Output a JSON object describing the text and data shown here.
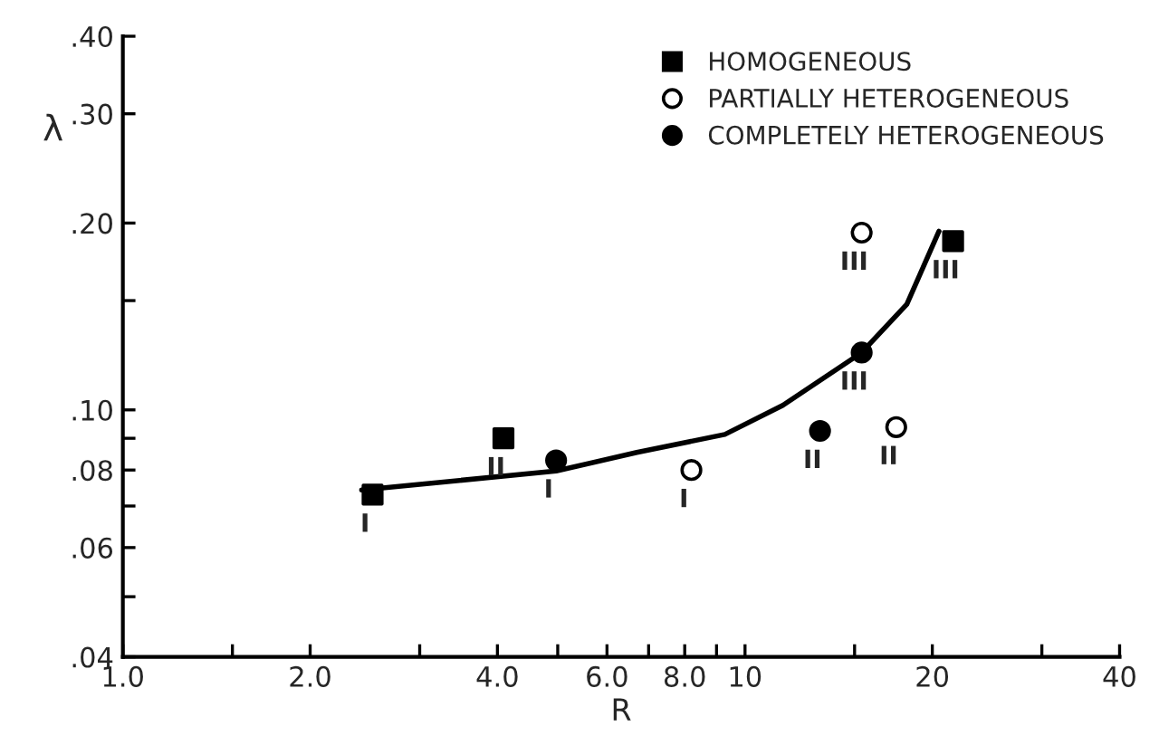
{
  "chart_data": {
    "type": "scatter",
    "xlabel": "R",
    "ylabel": "λ",
    "log": "xy",
    "grid": false,
    "legend": "top right",
    "xlim": [
      1.0,
      40
    ],
    "ylim": [
      0.04,
      0.4
    ],
    "xticks": [
      {
        "value": 1.0,
        "label": "1.0"
      },
      {
        "value": 1.5,
        "label": null
      },
      {
        "value": 2.0,
        "label": "2.0"
      },
      {
        "value": 3,
        "label": null
      },
      {
        "value": 4.0,
        "label": "4.0"
      },
      {
        "value": 5,
        "label": null
      },
      {
        "value": 6.0,
        "label": "6.0"
      },
      {
        "value": 7,
        "label": null
      },
      {
        "value": 8.0,
        "label": "8.0"
      },
      {
        "value": 9,
        "label": null
      },
      {
        "value": 10,
        "label": "10"
      },
      {
        "value": 15,
        "label": null
      },
      {
        "value": 20,
        "label": "20"
      },
      {
        "value": 30,
        "label": null
      },
      {
        "value": 40,
        "label": "40"
      }
    ],
    "yticks": [
      {
        "value": 0.04,
        "label": ".04"
      },
      {
        "value": 0.05,
        "label": null
      },
      {
        "value": 0.06,
        "label": ".06"
      },
      {
        "value": 0.07,
        "label": null
      },
      {
        "value": 0.08,
        "label": ".08"
      },
      {
        "value": 0.09,
        "label": null
      },
      {
        "value": 0.1,
        "label": ".10"
      },
      {
        "value": 0.15,
        "label": null
      },
      {
        "value": 0.2,
        "label": ".20"
      },
      {
        "value": 0.3,
        "label": ".30"
      },
      {
        "value": 0.4,
        "label": ".40"
      }
    ],
    "series": [
      {
        "type": "line",
        "color": "#000000",
        "marker": "none",
        "line_style": "solid",
        "x": [
          2.42,
          4.97,
          6.7,
          9.28,
          11.5,
          15.4,
          18.2,
          20.5
        ],
        "values": [
          0.0743,
          0.0797,
          0.0854,
          0.0913,
          0.1017,
          0.1237,
          0.148,
          0.194
        ]
      },
      {
        "type": "scatter",
        "name": "HOMOGENEOUS",
        "color": "#000000",
        "marker": "square",
        "x": [
          2.52,
          4.09,
          21.6
        ],
        "values": [
          0.073,
          0.09,
          0.187
        ]
      },
      {
        "type": "scatter",
        "name": "PARTIALLY HETEROGENEOUS",
        "color": "#ffffff",
        "marker": "circle",
        "x": [
          8.2,
          17.5,
          15.4
        ],
        "values": [
          0.08,
          0.0938,
          0.193
        ]
      },
      {
        "type": "scatter",
        "name": "COMPLETELY HETEROGENEOUS",
        "color": "#000000",
        "marker": "circle",
        "x": [
          4.97,
          13.2,
          15.4
        ],
        "values": [
          0.0829,
          0.0925,
          0.1237
        ]
      }
    ],
    "annotations": [
      {
        "text": "I",
        "x": 2.52,
        "y": 0.073
      },
      {
        "text": "II",
        "x": 4.09,
        "y": 0.09
      },
      {
        "text": "III",
        "x": 21.6,
        "y": 0.187
      },
      {
        "text": "I",
        "x": 8.2,
        "y": 0.08
      },
      {
        "text": "II",
        "x": 17.5,
        "y": 0.0938
      },
      {
        "text": "III",
        "x": 15.4,
        "y": 0.193
      },
      {
        "text": "I",
        "x": 4.97,
        "y": 0.0829
      },
      {
        "text": "II",
        "x": 13.2,
        "y": 0.0925
      },
      {
        "text": "III",
        "x": 15.4,
        "y": 0.1237
      }
    ]
  }
}
